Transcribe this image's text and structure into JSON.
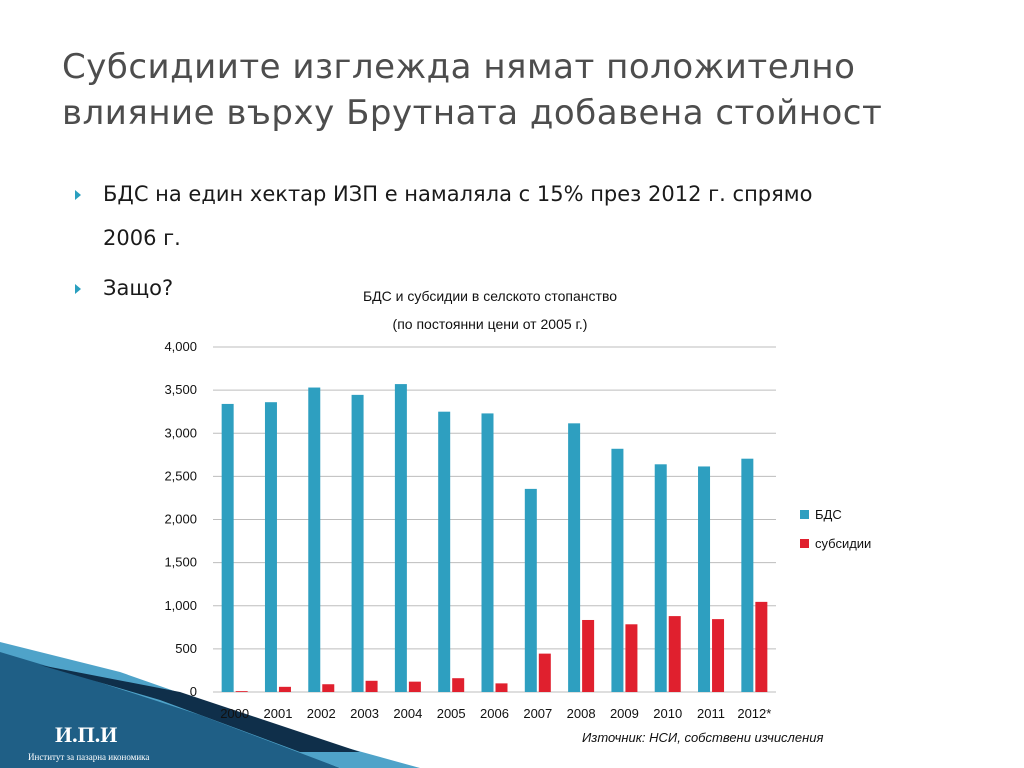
{
  "slide": {
    "title_line1": "Субсидиите изглежда нямат положително",
    "title_line2": "влияние върху Брутната добавена стойност",
    "bullets": [
      {
        "line1": "БДС на един хектар ИЗП е намаляла с 15% през 2012 г. спрямо",
        "line2": "2006 г."
      },
      {
        "line1": "Защо?"
      }
    ],
    "source": "Източник: НСИ, собствени изчисления",
    "logo": {
      "abbr": "И.П.И",
      "name": "Институт за пазарна икономика"
    },
    "colors": {
      "title": "#4d4d4d",
      "bullet_arrow": "#2a9fbf",
      "decor_dark": "#1f5f86",
      "decor_light": "#4fa3c9"
    }
  },
  "chart_data": {
    "type": "bar",
    "title": "БДС и субсидии в селското стопанство",
    "subtitle": "(по постоянни цени от 2005 г.)",
    "categories": [
      "2000",
      "2001",
      "2002",
      "2003",
      "2004",
      "2005",
      "2006",
      "2007",
      "2008",
      "2009",
      "2010",
      "2011",
      "2012*"
    ],
    "series": [
      {
        "name": "БДС",
        "color": "#2e9fc0",
        "values": [
          3340,
          3360,
          3530,
          3445,
          3570,
          3250,
          3230,
          2355,
          3115,
          2820,
          2640,
          2615,
          2705
        ]
      },
      {
        "name": "субсидии",
        "color": "#e0202e",
        "values": [
          10,
          60,
          90,
          130,
          120,
          160,
          100,
          445,
          835,
          785,
          880,
          845,
          1045
        ]
      }
    ],
    "yticks": [
      "0",
      "500",
      "1,000",
      "1,500",
      "2,000",
      "2,500",
      "3,000",
      "3,500",
      "4,000"
    ],
    "ylim": [
      0,
      4000
    ],
    "grid": true,
    "legend_position": "right"
  }
}
